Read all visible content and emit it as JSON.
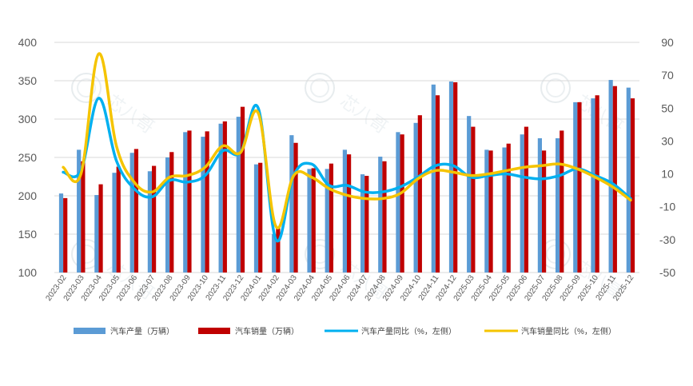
{
  "chart_data": {
    "type": "bar+line",
    "title": "",
    "categories": [
      "2023-02",
      "2023-03",
      "2023-04",
      "2023-05",
      "2023-06",
      "2023-07",
      "2023-08",
      "2023-09",
      "2023-10",
      "2023-11",
      "2023-12",
      "2024-01",
      "2024-02",
      "2024-03",
      "2024-04",
      "2024-05",
      "2024-06",
      "2024-07",
      "2024-08",
      "2024-09",
      "2024-10",
      "2024-11",
      "2024-12",
      "2025-03",
      "2025-04",
      "2025-05",
      "2025-06",
      "2025-07",
      "2025-08",
      "2025-09",
      "2025-10",
      "2025-11",
      "2025-12"
    ],
    "left_axis": {
      "min": 100,
      "max": 400,
      "ticks": [
        100,
        150,
        200,
        250,
        300,
        350,
        400
      ]
    },
    "right_axis": {
      "min": -50,
      "max": 90,
      "ticks": [
        -50,
        -30,
        -10,
        10,
        30,
        50,
        70,
        90
      ]
    },
    "grid": "horizontal",
    "legend_position": "bottom",
    "series": [
      {
        "name": "汽车产量（万辆）",
        "kind": "bar",
        "axis": "left",
        "color": "#5b9bd5",
        "values": [
          203,
          260,
          201,
          230,
          256,
          232,
          250,
          283,
          277,
          294,
          303,
          241,
          150,
          279,
          235,
          235,
          260,
          228,
          251,
          283,
          295,
          345,
          349,
          304,
          260,
          263,
          280,
          275,
          275,
          322,
          327,
          351,
          341
        ]
      },
      {
        "name": "汽车销量（万辆）",
        "kind": "bar",
        "axis": "left",
        "color": "#c00000",
        "values": [
          197,
          245,
          215,
          238,
          261,
          239,
          257,
          285,
          284,
          297,
          316,
          243,
          159,
          269,
          236,
          242,
          254,
          226,
          245,
          280,
          305,
          331,
          348,
          290,
          259,
          268,
          290,
          259,
          285,
          322,
          331,
          343,
          327
        ]
      },
      {
        "name": "汽车产量同比（%，左侧）",
        "kind": "line",
        "axis": "right",
        "color": "#00b0f0",
        "values": [
          11,
          12,
          56,
          18,
          1,
          -4,
          6,
          5,
          9,
          24,
          23,
          50,
          -30,
          9,
          16,
          3,
          3,
          -1,
          -1,
          2,
          8,
          15,
          15,
          8,
          9,
          10,
          8,
          7,
          9,
          13,
          9,
          4,
          -5
        ]
      },
      {
        "name": "汽车销量同比（%，左侧）",
        "kind": "line",
        "axis": "right",
        "color": "#f5c400",
        "values": [
          14,
          10,
          83,
          27,
          5,
          -1,
          8,
          9,
          14,
          27,
          23,
          47,
          -22,
          9,
          8,
          1,
          -3,
          -5,
          -5,
          -2,
          7,
          12,
          11,
          9,
          10,
          12,
          14,
          15,
          16,
          13,
          8,
          2,
          -6
        ]
      }
    ]
  },
  "watermark_text": "芯八哥"
}
